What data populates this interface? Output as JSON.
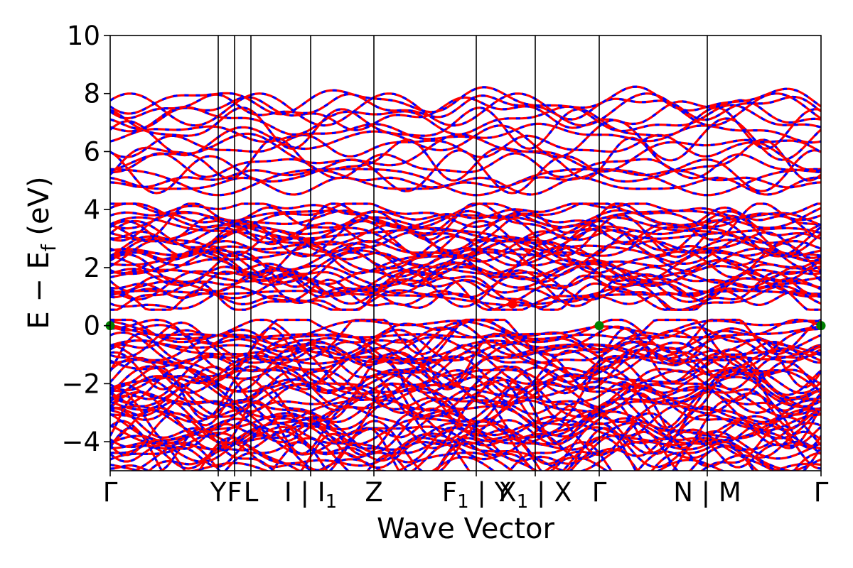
{
  "chart_data": {
    "type": "line",
    "title": "",
    "xlabel": "Wave Vector",
    "ylabel": "E − E",
    "ylabel_subscript": "f",
    "ylabel_unit": " (eV)",
    "ylim": [
      -5,
      10
    ],
    "yticks": [
      {
        "value": -4,
        "label": "−4"
      },
      {
        "value": -2,
        "label": "−2"
      },
      {
        "value": 0,
        "label": "0"
      },
      {
        "value": 2,
        "label": "2"
      },
      {
        "value": 4,
        "label": "4"
      },
      {
        "value": 6,
        "label": "6"
      },
      {
        "value": 8,
        "label": "8"
      },
      {
        "value": 10,
        "label": "10"
      }
    ],
    "kpath": [
      {
        "pos": 0.0,
        "label": "Γ"
      },
      {
        "pos": 0.152,
        "label": "Y"
      },
      {
        "pos": 0.175,
        "label": "F"
      },
      {
        "pos": 0.198,
        "label": "L"
      },
      {
        "pos": 0.282,
        "label": "I | I",
        "sub": "1"
      },
      {
        "pos": 0.371,
        "label": "Z"
      },
      {
        "pos": 0.515,
        "label": "F",
        "sub": "1",
        "suffix": " | Y"
      },
      {
        "pos": 0.598,
        "label": "X",
        "sub": "1",
        "suffix": " | X"
      },
      {
        "pos": 0.688,
        "label": "Γ"
      },
      {
        "pos": 0.84,
        "label": "N | M"
      },
      {
        "pos": 1.0,
        "label": "Γ"
      }
    ],
    "band_groups": {
      "valence": {
        "range": [
          -5.0,
          0.0
        ],
        "count": 52
      },
      "conduction_low": {
        "range": [
          0.75,
          4.0
        ],
        "count": 34
      },
      "conduction_high": {
        "range": [
          4.5,
          8.1
        ],
        "count": 16
      }
    },
    "series": [
      {
        "name": "",
        "color": "#ff0000",
        "style": "solid"
      },
      {
        "name": "",
        "color": "#0000ff",
        "style": "dashed"
      }
    ],
    "markers": [
      {
        "pos": 0.0,
        "value": 0.0,
        "color": "#008000",
        "note": "VBM"
      },
      {
        "pos": 0.688,
        "value": 0.0,
        "color": "#008000",
        "note": "VBM"
      },
      {
        "pos": 1.0,
        "value": 0.0,
        "color": "#008000",
        "note": "VBM"
      },
      {
        "pos": 0.566,
        "value": 0.75,
        "color": "#ff0000",
        "note": "CBM"
      }
    ],
    "grid": false,
    "legend": "none"
  }
}
